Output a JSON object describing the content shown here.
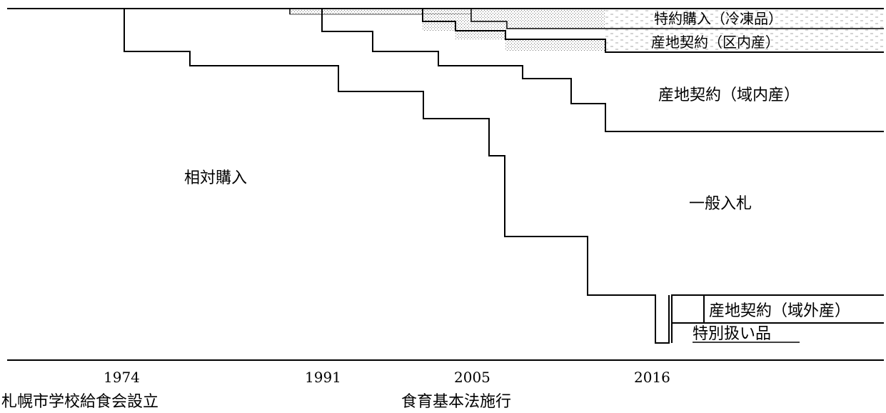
{
  "labels": {
    "frozen_purchase": "特約購入（冷凍品）",
    "ward_contract": "産地契約（区内産）",
    "domestic_contract": "産地契約（域内産）",
    "negotiated_purchase": "相対購入",
    "general_tender": "一般入札",
    "external_contract": "産地契約（域外産）",
    "special_items": "特別扱い品"
  },
  "axis": {
    "ticks": [
      "1974",
      "1991",
      "2005",
      "2016"
    ]
  },
  "events": {
    "association_founded": "札幌市学校給食会設立",
    "food_education_act": "食育基本法施行"
  }
}
